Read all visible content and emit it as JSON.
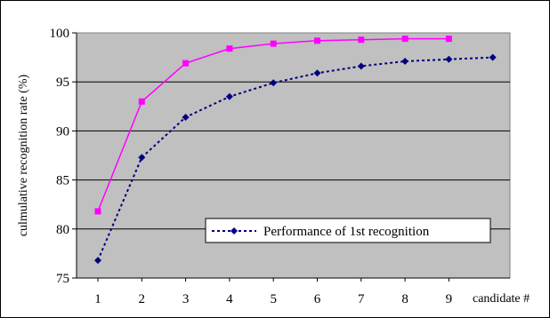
{
  "chart_data": {
    "type": "line",
    "title": "",
    "xlabel": "candidate #",
    "ylabel": "culmulative recognition rate (%)",
    "x": [
      1,
      2,
      3,
      4,
      5,
      6,
      7,
      8,
      9,
      10
    ],
    "x_tick_labels": [
      "1",
      "2",
      "3",
      "4",
      "5",
      "6",
      "7",
      "8",
      "9"
    ],
    "ylim": [
      75,
      100
    ],
    "y_ticks": [
      75,
      80,
      85,
      90,
      95,
      100
    ],
    "grid": "horizontal",
    "plot_background": "#c0c0c0",
    "legend_position": "lower-right",
    "series": [
      {
        "name": "",
        "color": "#ff00ff",
        "line_style": "solid",
        "marker": "square",
        "x": [
          1,
          2,
          3,
          4,
          5,
          6,
          7,
          8,
          9
        ],
        "values": [
          81.8,
          93.0,
          96.9,
          98.4,
          98.9,
          99.2,
          99.3,
          99.4,
          99.4
        ]
      },
      {
        "name": "Performance of 1st recognition",
        "color": "#000080",
        "line_style": "dotted",
        "marker": "diamond",
        "x": [
          1,
          2,
          3,
          4,
          5,
          6,
          7,
          8,
          9,
          10
        ],
        "values": [
          76.8,
          87.3,
          91.4,
          93.5,
          94.9,
          95.9,
          96.6,
          97.1,
          97.3,
          97.5
        ]
      }
    ]
  }
}
